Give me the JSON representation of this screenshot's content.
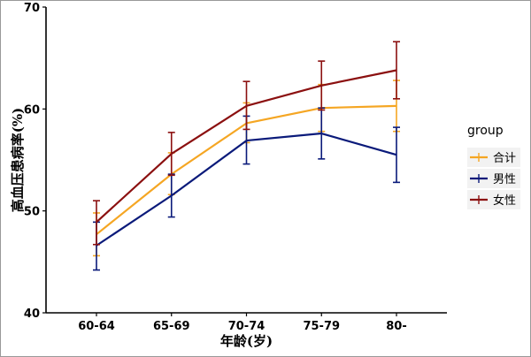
{
  "chart_data": {
    "type": "line",
    "categories": [
      "60-64",
      "65-69",
      "70-74",
      "75-79",
      "80-"
    ],
    "xlabel": "年龄(岁)",
    "ylabel": "高血压患病率(%)",
    "ylim": [
      40,
      70
    ],
    "yticks": [
      "40",
      "50",
      "60",
      "70"
    ],
    "grid": false,
    "legend": {
      "title": "group",
      "position": "right"
    },
    "series": [
      {
        "name": "合计",
        "color": "#f5a623",
        "values": [
          47.7,
          53.6,
          58.6,
          60.1,
          60.3
        ],
        "lower": [
          45.6,
          51.6,
          56.7,
          57.8,
          57.8
        ],
        "upper": [
          49.8,
          55.7,
          60.6,
          62.4,
          62.8
        ]
      },
      {
        "name": "男性",
        "color": "#0a1a7a",
        "values": [
          46.6,
          51.5,
          56.9,
          57.6,
          55.5
        ],
        "lower": [
          44.2,
          49.4,
          54.6,
          55.1,
          52.8
        ],
        "upper": [
          48.9,
          53.6,
          59.3,
          60.1,
          58.2
        ]
      },
      {
        "name": "女性",
        "color": "#8b1010",
        "values": [
          48.9,
          55.6,
          60.3,
          62.3,
          63.8
        ],
        "lower": [
          46.7,
          53.5,
          58.0,
          59.9,
          61.0
        ],
        "upper": [
          51.0,
          57.7,
          62.7,
          64.7,
          66.6
        ]
      }
    ]
  }
}
